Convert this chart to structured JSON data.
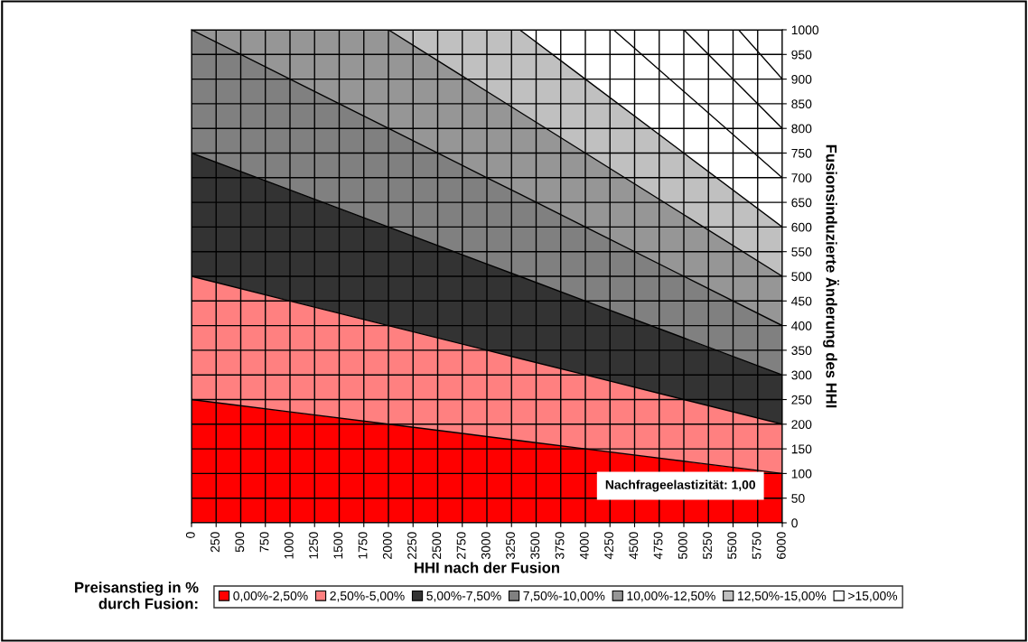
{
  "chart_data": {
    "type": "area",
    "stacked": true,
    "x": [
      0,
      1000,
      2000,
      3000,
      3333.33,
      4000,
      5000,
      6000
    ],
    "series": [
      {
        "name": "0,00%-2,50%",
        "color": "#ff0000",
        "values": [
          250,
          225,
          200,
          175,
          166.67,
          150,
          125,
          100
        ]
      },
      {
        "name": "2,50%-5,00%",
        "color": "#ff8080",
        "values": [
          250,
          225,
          200,
          175,
          166.67,
          150,
          125,
          100
        ]
      },
      {
        "name": "5,00%-7,50%",
        "color": "#333333",
        "values": [
          250,
          225,
          200,
          175,
          166.67,
          150,
          125,
          100
        ]
      },
      {
        "name": "7,50%-10,00%",
        "color": "#808080",
        "values": [
          250,
          225,
          200,
          175,
          166.67,
          150,
          125,
          100
        ]
      },
      {
        "name": "10,00%-12,50%",
        "color": "#969696",
        "values": [
          0,
          100,
          200,
          175,
          166.67,
          150,
          125,
          100
        ]
      },
      {
        "name": "12,50%-15,00%",
        "color": "#c0c0c0",
        "values": [
          0,
          0,
          0,
          125,
          166.65,
          150,
          125,
          100
        ]
      },
      {
        "name": ">15,00%",
        "color": "#ffffff",
        "values": [
          0,
          0,
          0,
          0,
          0,
          100,
          250,
          400
        ]
      },
      {
        "type": "line",
        "color": "#000000",
        "x": [
          4285.71,
          6000
        ],
        "values": [
          1000,
          700
        ]
      },
      {
        "type": "line",
        "color": "#000000",
        "x": [
          5000,
          6000
        ],
        "values": [
          1000,
          800
        ]
      },
      {
        "type": "line",
        "color": "#000000",
        "x": [
          5555.56,
          6000
        ],
        "values": [
          1000,
          900
        ]
      }
    ],
    "xlim": [
      0,
      6000
    ],
    "xticks": [
      0,
      250,
      500,
      750,
      1000,
      1250,
      1500,
      1750,
      2000,
      2250,
      2500,
      2750,
      3000,
      3250,
      3500,
      3750,
      4000,
      4250,
      4500,
      4750,
      5000,
      5250,
      5500,
      5750,
      6000
    ],
    "ylim": [
      0,
      1000
    ],
    "yticks": [
      0,
      50,
      100,
      150,
      200,
      250,
      300,
      350,
      400,
      450,
      500,
      550,
      600,
      650,
      700,
      750,
      800,
      850,
      900,
      950,
      1000
    ],
    "xlabel": "HHI nach der Fusion",
    "y2label": "Fusionsinduzierte Änderung des HHI",
    "legend_title": "Preisanstieg in %\ndurch Fusion:",
    "legend": "bottom",
    "grid": true,
    "annotations": [
      "Nachfrageelastizität: 1,00"
    ]
  }
}
